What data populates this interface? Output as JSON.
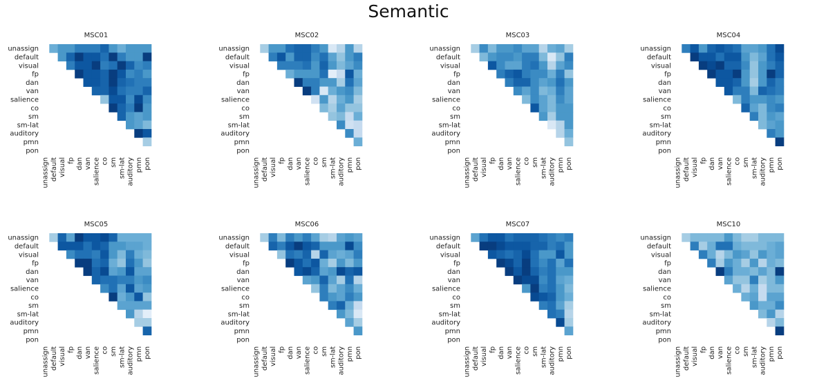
{
  "figure": {
    "title": "Semantic"
  },
  "chart_data": {
    "type": "heatmap",
    "title": "Semantic",
    "colormap": "Blues",
    "triangle": "upper",
    "networks": [
      "unassign",
      "default",
      "visual",
      "fp",
      "dan",
      "van",
      "salience",
      "co",
      "sm",
      "sm-lat",
      "auditory",
      "pmn",
      "pon"
    ],
    "panels": [
      {
        "title": "MSC01",
        "values": [
          [
            0.5,
            0.6,
            0.6,
            0.7,
            0.7,
            0.7,
            0.8,
            0.6,
            0.5,
            0.6,
            0.6,
            0.6
          ],
          [
            0.6,
            0.8,
            0.95,
            0.85,
            0.85,
            0.75,
            0.95,
            0.7,
            0.6,
            0.6,
            0.95,
            0.7
          ],
          [
            0.7,
            0.85,
            0.85,
            0.95,
            0.7,
            0.75,
            0.95,
            0.8,
            0.65,
            0.7,
            0.95,
            0.75
          ],
          [
            0.95,
            0.85,
            0.85,
            0.8,
            0.95,
            0.85,
            0.65,
            0.7,
            0.6,
            0.6
          ],
          [
            0.85,
            0.85,
            0.8,
            0.95,
            0.8,
            0.75,
            0.7,
            0.7,
            0.65
          ],
          [
            0.8,
            0.8,
            0.9,
            0.75,
            0.7,
            0.7,
            0.8,
            0.6
          ],
          [
            0.4,
            0.85,
            0.85,
            0.65,
            0.9,
            0.65,
            0.6
          ],
          [
            0.95,
            0.8,
            0.7,
            0.95,
            0.6,
            0.6
          ],
          [
            0.8,
            0.6,
            0.55,
            0.6,
            0.6
          ],
          [
            0.6,
            0.55,
            0.45,
            0.45
          ],
          [
            0.95,
            0.85,
            0.5
          ],
          [
            0.35,
            0.6
          ],
          [
            0.45
          ]
        ]
      },
      {
        "title": "MSC02",
        "values": [
          [
            0.35,
            0.6,
            0.6,
            0.75,
            0.8,
            0.8,
            0.7,
            0.6,
            0.15,
            0.3,
            0.6,
            0.3
          ],
          [
            0.7,
            0.85,
            0.6,
            0.8,
            0.8,
            0.65,
            0.75,
            0.55,
            0.4,
            0.6,
            0.7,
            0.4
          ],
          [
            0.7,
            0.7,
            0.7,
            0.75,
            0.6,
            0.8,
            0.6,
            0.45,
            0.55,
            0.65,
            0.45
          ],
          [
            0.5,
            0.6,
            0.6,
            0.6,
            0.75,
            0.1,
            0.25,
            0.85,
            0.5
          ],
          [
            0.95,
            0.7,
            0.7,
            0.6,
            0.6,
            0.35,
            0.75,
            0.55
          ],
          [
            0.95,
            0.7,
            0.15,
            0.5,
            0.6,
            0.65,
            0.45
          ],
          [
            0.2,
            0.6,
            0.3,
            0.5,
            0.6,
            0.35
          ],
          [
            0.45,
            0.35,
            0.55,
            0.4,
            0.4
          ],
          [
            0.4,
            0.45,
            0.25,
            0.5
          ],
          [
            0.65,
            0.2,
            0.25
          ],
          [
            0.65,
            0.25
          ],
          [
            0.5
          ],
          [
            0.55
          ]
        ]
      },
      {
        "title": "MSC03",
        "values": [
          [
            0.35,
            0.65,
            0.45,
            0.6,
            0.6,
            0.65,
            0.55,
            0.55,
            0.3,
            0.5,
            0.55,
            0.35
          ],
          [
            0.45,
            0.6,
            0.65,
            0.65,
            0.6,
            0.7,
            0.7,
            0.45,
            0.15,
            0.4,
            0.7,
            0.55
          ],
          [
            0.85,
            0.65,
            0.55,
            0.55,
            0.7,
            0.75,
            0.6,
            0.3,
            0.55,
            0.65,
            0.45
          ],
          [
            0.7,
            0.8,
            0.85,
            0.7,
            0.65,
            0.65,
            0.5,
            0.7,
            0.4,
            0.6
          ],
          [
            0.7,
            0.8,
            0.8,
            0.65,
            0.55,
            0.6,
            0.75,
            0.6
          ],
          [
            0.65,
            0.55,
            0.65,
            0.45,
            0.5,
            0.7,
            0.55
          ],
          [
            0.45,
            0.65,
            0.55,
            0.45,
            0.65,
            0.55
          ],
          [
            0.85,
            0.55,
            0.45,
            0.6,
            0.6
          ],
          [
            0.6,
            0.35,
            0.6,
            0.6
          ],
          [
            0.15,
            0.3,
            0.6
          ],
          [
            0.3,
            0.5
          ],
          [
            0.4
          ],
          [
            0.55
          ]
        ]
      },
      {
        "title": "MSC04",
        "values": [
          [
            0.7,
            0.85,
            0.6,
            0.8,
            0.85,
            0.8,
            0.75,
            0.55,
            0.55,
            0.6,
            0.75,
            0.9
          ],
          [
            0.95,
            0.85,
            0.85,
            0.75,
            0.85,
            0.85,
            0.6,
            0.45,
            0.55,
            0.75,
            0.85
          ],
          [
            0.95,
            0.9,
            0.95,
            0.8,
            0.8,
            0.65,
            0.4,
            0.6,
            0.7,
            0.8
          ],
          [
            0.95,
            0.85,
            0.85,
            0.95,
            0.6,
            0.4,
            0.6,
            0.95,
            0.8
          ],
          [
            0.85,
            0.85,
            0.8,
            0.6,
            0.35,
            0.6,
            0.8,
            0.7
          ],
          [
            0.85,
            0.7,
            0.7,
            0.45,
            0.8,
            0.75,
            0.7
          ],
          [
            0.45,
            0.7,
            0.6,
            0.6,
            0.65,
            0.6
          ],
          [
            0.8,
            0.55,
            0.45,
            0.65,
            0.7
          ],
          [
            0.7,
            0.45,
            0.6,
            0.55
          ],
          [
            0.45,
            0.55,
            0.6
          ],
          [
            0.7,
            0.6
          ],
          [
            0.95
          ],
          [
            0.85
          ]
        ]
      },
      {
        "title": "MSC05",
        "values": [
          [
            0.35,
            0.8,
            0.55,
            0.95,
            0.85,
            0.85,
            0.9,
            0.8,
            0.5,
            0.5,
            0.5,
            0.5
          ],
          [
            0.85,
            0.85,
            0.85,
            0.75,
            0.85,
            0.8,
            0.6,
            0.6,
            0.55,
            0.55,
            0.5
          ],
          [
            0.65,
            0.75,
            0.75,
            0.7,
            0.85,
            0.6,
            0.45,
            0.7,
            0.5,
            0.45
          ],
          [
            0.95,
            0.95,
            0.75,
            0.8,
            0.5,
            0.4,
            0.75,
            0.6,
            0.4
          ],
          [
            0.95,
            0.8,
            0.9,
            0.55,
            0.6,
            0.85,
            0.55,
            0.55
          ],
          [
            0.8,
            0.75,
            0.75,
            0.7,
            0.7,
            0.6,
            0.65
          ],
          [
            0.65,
            0.75,
            0.55,
            0.85,
            0.55,
            0.6
          ],
          [
            0.95,
            0.5,
            0.6,
            0.85,
            0.4
          ],
          [
            0.55,
            0.55,
            0.55,
            0.55
          ],
          [
            0.6,
            0.3,
            0.1
          ],
          [
            0.35,
            0.35
          ],
          [
            0.8
          ],
          [
            0.8
          ]
        ]
      },
      {
        "title": "MSC06",
        "values": [
          [
            0.35,
            0.7,
            0.45,
            0.7,
            0.6,
            0.7,
            0.55,
            0.35,
            0.3,
            0.55,
            0.6,
            0.55
          ],
          [
            0.8,
            0.7,
            0.85,
            0.95,
            0.85,
            0.8,
            0.6,
            0.6,
            0.6,
            0.9,
            0.65,
            0.8
          ],
          [
            0.4,
            0.75,
            0.7,
            0.8,
            0.3,
            0.8,
            0.55,
            0.5,
            0.55,
            0.7,
            0.5
          ],
          [
            0.95,
            0.85,
            0.75,
            0.85,
            0.5,
            0.35,
            0.6,
            0.45,
            0.6
          ],
          [
            0.85,
            0.9,
            0.8,
            0.55,
            0.6,
            0.9,
            0.8,
            0.85
          ],
          [
            0.55,
            0.6,
            0.8,
            0.55,
            0.35,
            0.75,
            0.3
          ],
          [
            0.4,
            0.7,
            0.45,
            0.55,
            0.65,
            0.5
          ],
          [
            0.7,
            0.6,
            0.55,
            0.7,
            0.6
          ],
          [
            0.7,
            0.8,
            0.5,
            0.25
          ],
          [
            0.6,
            0.45,
            0.15
          ],
          [
            0.55,
            0.35
          ],
          [
            0.6
          ],
          [
            0.45
          ]
        ]
      },
      {
        "title": "MSC07",
        "values": [
          [
            0.55,
            0.75,
            0.85,
            0.85,
            0.75,
            0.8,
            0.8,
            0.8,
            0.75,
            0.7,
            0.65,
            0.7
          ],
          [
            0.95,
            0.95,
            0.9,
            0.85,
            0.85,
            0.85,
            0.8,
            0.8,
            0.7,
            0.75,
            0.6
          ],
          [
            0.85,
            0.8,
            0.75,
            0.8,
            0.9,
            0.75,
            0.6,
            0.6,
            0.85,
            0.6
          ],
          [
            0.95,
            0.9,
            0.8,
            0.95,
            0.75,
            0.65,
            0.75,
            0.55,
            0.75
          ],
          [
            0.95,
            0.85,
            0.95,
            0.8,
            0.7,
            0.75,
            0.6,
            0.6
          ],
          [
            0.95,
            0.9,
            0.9,
            0.65,
            0.75,
            0.55,
            0.5
          ],
          [
            0.6,
            0.95,
            0.7,
            0.75,
            0.6,
            0.45
          ],
          [
            0.9,
            0.85,
            0.8,
            0.6,
            0.5
          ],
          [
            0.7,
            0.75,
            0.55,
            0.35
          ],
          [
            0.75,
            0.7,
            0.3
          ],
          [
            0.9,
            0.35
          ],
          [
            0.55
          ],
          [
            0.35
          ]
        ]
      },
      {
        "title": "MSC10",
        "values": [
          [
            0.35,
            0.45,
            0.45,
            0.45,
            0.45,
            0.6,
            0.45,
            0.35,
            0.35,
            0.45,
            0.45,
            0.45
          ],
          [
            0.7,
            0.35,
            0.5,
            0.75,
            0.75,
            0.5,
            0.45,
            0.45,
            0.45,
            0.5,
            0.55,
            0.45
          ],
          [
            0.7,
            0.5,
            0.3,
            0.45,
            0.6,
            0.55,
            0.4,
            0.6,
            0.5,
            0.55,
            0.5
          ],
          [
            0.7,
            0.35,
            0.6,
            0.5,
            0.35,
            0.6,
            0.3,
            0.5,
            0.45,
            0.6
          ],
          [
            0.95,
            0.7,
            0.5,
            0.5,
            0.45,
            0.55,
            0.45,
            0.95
          ],
          [
            0.55,
            0.4,
            0.4,
            0.7,
            0.35,
            0.45,
            0.6
          ],
          [
            0.5,
            0.3,
            0.5,
            0.25,
            0.45,
            0.45
          ],
          [
            0.5,
            0.55,
            0.25,
            0.55,
            0.55
          ],
          [
            0.6,
            0.5,
            0.5,
            0.65
          ],
          [
            0.45,
            0.6,
            0.3
          ],
          [
            0.3,
            0.45
          ],
          [
            0.95
          ],
          [
            0.6
          ]
        ]
      }
    ]
  }
}
